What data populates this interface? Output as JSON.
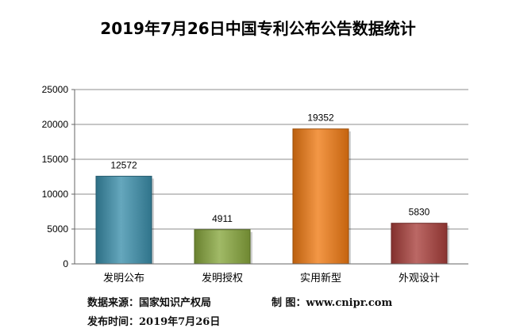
{
  "chart_data": {
    "type": "bar",
    "title": "2019年7月26日中国专利公布公告数据统计",
    "categories": [
      "发明公布",
      "发明授权",
      "实用新型",
      "外观设计"
    ],
    "values": [
      12572,
      4911,
      19352,
      5830
    ],
    "data_labels": [
      "12572",
      "4911",
      "19352",
      "5830"
    ],
    "yticks": [
      0,
      5000,
      10000,
      15000,
      20000,
      25000
    ],
    "ytick_labels": [
      "0",
      "5000",
      "10000",
      "15000",
      "20000",
      "25000"
    ],
    "ylim": [
      0,
      25000
    ],
    "xlabel": "",
    "ylabel": "",
    "grid": true,
    "legend": "none",
    "bar_colors": [
      "#3a8eaa",
      "#87a63c",
      "#f07a12",
      "#a83e3a"
    ]
  },
  "footer": {
    "source_label": "数据来源：国家知识产权局",
    "maker_label": "制  图：www.cnipr.com",
    "date_label": "发布时间：2019年7月26日"
  },
  "colors": {
    "gridline": "#8c8c8c",
    "axis": "#666666"
  }
}
